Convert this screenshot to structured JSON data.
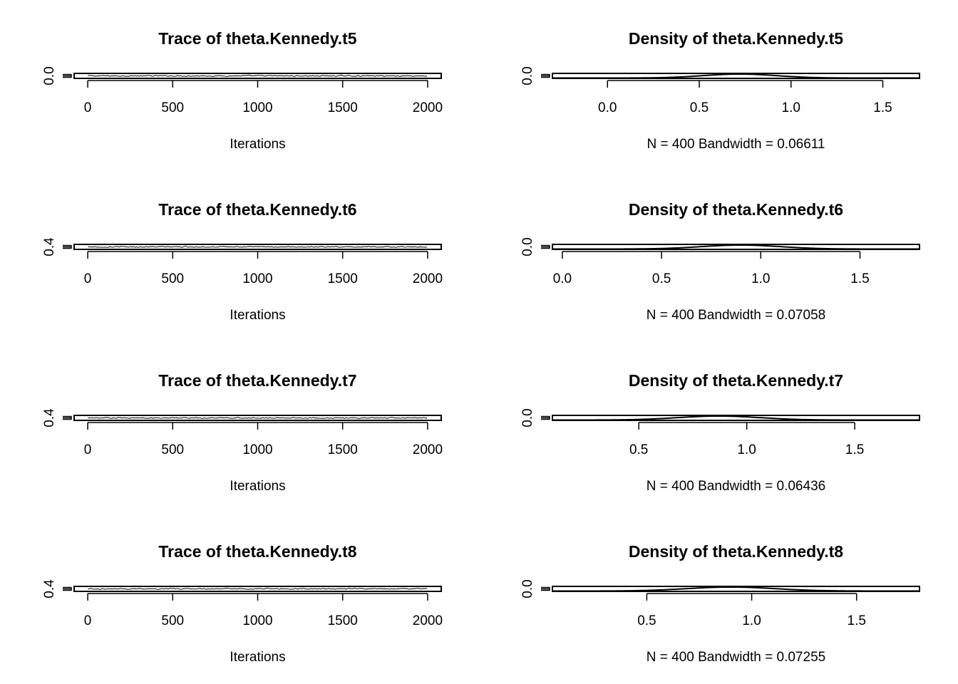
{
  "chart_data": [
    {
      "type": "line",
      "kind": "trace",
      "title": "Trace of theta.Kennedy.t5",
      "xlabel": "Iterations",
      "ylabel": "",
      "x_ticks": [
        0,
        500,
        1000,
        1500,
        2000
      ],
      "y_ticks": [
        "0.0"
      ],
      "xlim": [
        -80,
        2080
      ],
      "ylim": [
        -0.35,
        1.75
      ],
      "series": [
        {
          "x_range": [
            1,
            2000
          ],
          "mean": 0.7,
          "spread": 0.35
        }
      ]
    },
    {
      "type": "line",
      "kind": "density",
      "title": "Density of theta.Kennedy.t5",
      "xlabel": "N = 400   Bandwidth = 0.06611",
      "ylabel": "",
      "x_ticks": [
        "0.0",
        "0.5",
        "1.0",
        "1.5"
      ],
      "y_ticks": [
        "0.0"
      ],
      "xlim": [
        -0.3,
        1.7
      ],
      "ylim": [
        0,
        1.3
      ],
      "density": {
        "mode": 0.72,
        "peak": 1.2,
        "sd": 0.2
      }
    },
    {
      "type": "line",
      "kind": "trace",
      "title": "Trace of theta.Kennedy.t6",
      "xlabel": "Iterations",
      "ylabel": "",
      "x_ticks": [
        0,
        500,
        1000,
        1500,
        2000
      ],
      "y_ticks": [
        "0.4"
      ],
      "xlim": [
        -80,
        2080
      ],
      "ylim": [
        0.2,
        1.6
      ],
      "series": [
        {
          "x_range": [
            1,
            2000
          ],
          "mean": 0.9,
          "spread": 0.22
        }
      ]
    },
    {
      "type": "line",
      "kind": "density",
      "title": "Density of theta.Kennedy.t6",
      "xlabel": "N = 400   Bandwidth = 0.07058",
      "ylabel": "",
      "x_ticks": [
        "0.0",
        "0.5",
        "1.0",
        "1.5"
      ],
      "y_ticks": [
        "0.0"
      ],
      "xlim": [
        -0.05,
        1.8
      ],
      "ylim": [
        0,
        1.3
      ],
      "density": {
        "mode": 0.9,
        "peak": 1.2,
        "sd": 0.2
      }
    },
    {
      "type": "line",
      "kind": "trace",
      "title": "Trace of theta.Kennedy.t7",
      "xlabel": "Iterations",
      "ylabel": "",
      "x_ticks": [
        0,
        500,
        1000,
        1500,
        2000
      ],
      "y_ticks": [
        "0.4"
      ],
      "xlim": [
        -80,
        2080
      ],
      "ylim": [
        0.2,
        1.6
      ],
      "series": [
        {
          "x_range": [
            1,
            2000
          ],
          "mean": 0.88,
          "spread": 0.22
        }
      ]
    },
    {
      "type": "line",
      "kind": "density",
      "title": "Density of theta.Kennedy.t7",
      "xlabel": "N = 400   Bandwidth = 0.06436",
      "ylabel": "",
      "x_ticks": [
        "0.5",
        "1.0",
        "1.5"
      ],
      "y_ticks": [
        "0.0"
      ],
      "xlim": [
        0.1,
        1.8
      ],
      "ylim": [
        0,
        1.3
      ],
      "density": {
        "mode": 0.87,
        "peak": 1.2,
        "sd": 0.19
      }
    },
    {
      "type": "line",
      "kind": "trace",
      "title": "Trace of theta.Kennedy.t8",
      "xlabel": "Iterations",
      "ylabel": "",
      "x_ticks": [
        0,
        500,
        1000,
        1500,
        2000
      ],
      "y_ticks": [
        "0.4"
      ],
      "xlim": [
        -80,
        2080
      ],
      "ylim": [
        0.2,
        1.6
      ],
      "series": [
        {
          "x_range": [
            1,
            2000
          ],
          "mean": 0.92,
          "spread": 0.22
        }
      ]
    },
    {
      "type": "line",
      "kind": "density",
      "title": "Density of theta.Kennedy.t8",
      "xlabel": "N = 400   Bandwidth = 0.07255",
      "ylabel": "",
      "x_ticks": [
        "0.5",
        "1.0",
        "1.5"
      ],
      "y_ticks": [
        "0.0"
      ],
      "xlim": [
        0.05,
        1.8
      ],
      "ylim": [
        0,
        1.3
      ],
      "density": {
        "mode": 0.9,
        "peak": 1.2,
        "sd": 0.21
      }
    }
  ]
}
